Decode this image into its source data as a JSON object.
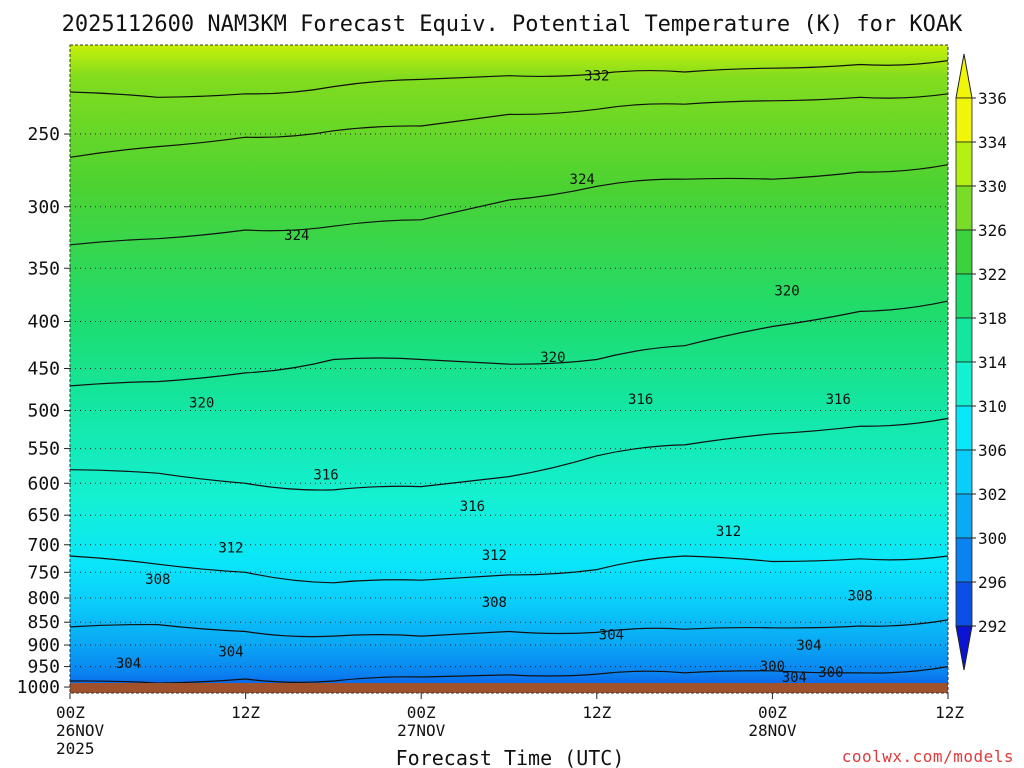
{
  "chart_data": {
    "type": "heatmap",
    "title": "2025112600 NAM3KM Forecast Equiv. Potential Temperature (K) for KOAK",
    "xlabel": "Forecast Time (UTC)",
    "ylabel": "",
    "x_range_hours": [
      0,
      60
    ],
    "y_range_hpa": [
      1015,
      200
    ],
    "y_ticks": [
      250,
      300,
      350,
      400,
      450,
      500,
      550,
      600,
      650,
      700,
      750,
      800,
      850,
      900,
      950,
      1000
    ],
    "y_tick_labels": [
      "250",
      "300",
      "350",
      "400",
      "450",
      "500",
      "550",
      "600",
      "650",
      "700",
      "750",
      "800",
      "850",
      "900",
      "950",
      "1000"
    ],
    "x_ticks": [
      {
        "hour": 0,
        "lines": [
          "00Z",
          "26NOV",
          "2025"
        ]
      },
      {
        "hour": 12,
        "lines": [
          "12Z"
        ]
      },
      {
        "hour": 24,
        "lines": [
          "00Z",
          "27NOV"
        ]
      },
      {
        "hour": 36,
        "lines": [
          "12Z"
        ]
      },
      {
        "hour": 48,
        "lines": [
          "00Z",
          "28NOV"
        ]
      },
      {
        "hour": 60,
        "lines": [
          "12Z"
        ]
      }
    ],
    "colorbar_levels": [
      292,
      296,
      300,
      302,
      306,
      310,
      314,
      318,
      322,
      326,
      330,
      334,
      336
    ],
    "colorbar_labels": [
      "292",
      "296",
      "300",
      "302",
      "306",
      "310",
      "314",
      "318",
      "322",
      "326",
      "330",
      "334",
      "336"
    ],
    "colorbar_colors": [
      "#0a14d2",
      "#0a50e6",
      "#0a82f0",
      "#0aaaf5",
      "#0acdfa",
      "#0ae6fa",
      "#14f0d2",
      "#14e6a0",
      "#1edc6e",
      "#3cd23c",
      "#78dc28",
      "#b4f014",
      "#f0f50a"
    ],
    "isotherms": [
      {
        "value": 304,
        "points": [
          [
            0,
            985
          ],
          [
            6,
            990
          ],
          [
            12,
            980
          ],
          [
            18,
            985
          ],
          [
            24,
            975
          ],
          [
            30,
            970
          ],
          [
            36,
            968
          ],
          [
            42,
            965
          ],
          [
            48,
            960
          ],
          [
            54,
            965
          ],
          [
            60,
            950
          ]
        ]
      },
      {
        "value": 308,
        "points": [
          [
            0,
            860
          ],
          [
            6,
            855
          ],
          [
            12,
            870
          ],
          [
            18,
            880
          ],
          [
            24,
            880
          ],
          [
            30,
            870
          ],
          [
            36,
            872
          ],
          [
            42,
            865
          ],
          [
            48,
            862
          ],
          [
            54,
            858
          ],
          [
            60,
            845
          ]
        ]
      },
      {
        "value": 312,
        "points": [
          [
            0,
            720
          ],
          [
            6,
            735
          ],
          [
            12,
            750
          ],
          [
            18,
            770
          ],
          [
            24,
            765
          ],
          [
            30,
            755
          ],
          [
            36,
            745
          ],
          [
            42,
            720
          ],
          [
            48,
            730
          ],
          [
            54,
            725
          ],
          [
            60,
            720
          ]
        ]
      },
      {
        "value": 316,
        "points": [
          [
            0,
            580
          ],
          [
            6,
            585
          ],
          [
            12,
            600
          ],
          [
            18,
            610
          ],
          [
            24,
            605
          ],
          [
            30,
            590
          ],
          [
            36,
            560
          ],
          [
            42,
            545
          ],
          [
            48,
            530
          ],
          [
            54,
            520
          ],
          [
            60,
            510
          ]
        ]
      },
      {
        "value": 320,
        "points": [
          [
            0,
            470
          ],
          [
            6,
            465
          ],
          [
            12,
            455
          ],
          [
            18,
            440
          ],
          [
            24,
            440
          ],
          [
            30,
            445
          ],
          [
            36,
            440
          ],
          [
            42,
            425
          ],
          [
            48,
            405
          ],
          [
            54,
            390
          ],
          [
            60,
            380
          ]
        ]
      },
      {
        "value": 324,
        "points": [
          [
            0,
            330
          ],
          [
            6,
            325
          ],
          [
            12,
            318
          ],
          [
            18,
            315
          ],
          [
            24,
            310
          ],
          [
            30,
            295
          ],
          [
            36,
            285
          ],
          [
            42,
            280
          ],
          [
            48,
            280
          ],
          [
            54,
            275
          ],
          [
            60,
            270
          ]
        ]
      },
      {
        "value": 328,
        "points": [
          [
            0,
            265
          ],
          [
            6,
            258
          ],
          [
            12,
            252
          ],
          [
            18,
            248
          ],
          [
            24,
            245
          ],
          [
            30,
            238
          ],
          [
            36,
            235
          ],
          [
            42,
            232
          ],
          [
            48,
            230
          ],
          [
            54,
            228
          ],
          [
            60,
            226
          ]
        ]
      },
      {
        "value": 332,
        "points": [
          [
            0,
            225
          ],
          [
            6,
            228
          ],
          [
            12,
            226
          ],
          [
            18,
            222
          ],
          [
            24,
            218
          ],
          [
            30,
            216
          ],
          [
            36,
            215
          ],
          [
            42,
            214
          ],
          [
            48,
            212
          ],
          [
            54,
            210
          ],
          [
            60,
            208
          ]
        ]
      }
    ],
    "contour_labels": [
      {
        "text": "332",
        "hour": 36,
        "hpa": 216
      },
      {
        "text": "324",
        "hour": 35,
        "hpa": 280
      },
      {
        "text": "324",
        "hour": 15.5,
        "hpa": 322
      },
      {
        "text": "320",
        "hour": 49,
        "hpa": 370
      },
      {
        "text": "320",
        "hour": 33,
        "hpa": 437
      },
      {
        "text": "320",
        "hour": 9,
        "hpa": 490
      },
      {
        "text": "316",
        "hour": 39,
        "hpa": 486
      },
      {
        "text": "316",
        "hour": 52.5,
        "hpa": 486
      },
      {
        "text": "316",
        "hour": 17.5,
        "hpa": 587
      },
      {
        "text": "316",
        "hour": 27.5,
        "hpa": 635
      },
      {
        "text": "312",
        "hour": 11,
        "hpa": 705
      },
      {
        "text": "312",
        "hour": 29,
        "hpa": 718
      },
      {
        "text": "312",
        "hour": 45,
        "hpa": 676
      },
      {
        "text": "308",
        "hour": 6,
        "hpa": 763
      },
      {
        "text": "308",
        "hour": 29,
        "hpa": 808
      },
      {
        "text": "308",
        "hour": 54,
        "hpa": 795
      },
      {
        "text": "304",
        "hour": 37,
        "hpa": 877
      },
      {
        "text": "304",
        "hour": 11,
        "hpa": 915
      },
      {
        "text": "304",
        "hour": 4,
        "hpa": 941
      },
      {
        "text": "304",
        "hour": 50.5,
        "hpa": 900
      },
      {
        "text": "300",
        "hour": 48,
        "hpa": 948
      },
      {
        "text": "300",
        "hour": 52,
        "hpa": 963
      },
      {
        "text": "304",
        "hour": 49.5,
        "hpa": 975
      }
    ],
    "ground_color": "#a0522d"
  },
  "credit": "coolwx.com/models"
}
